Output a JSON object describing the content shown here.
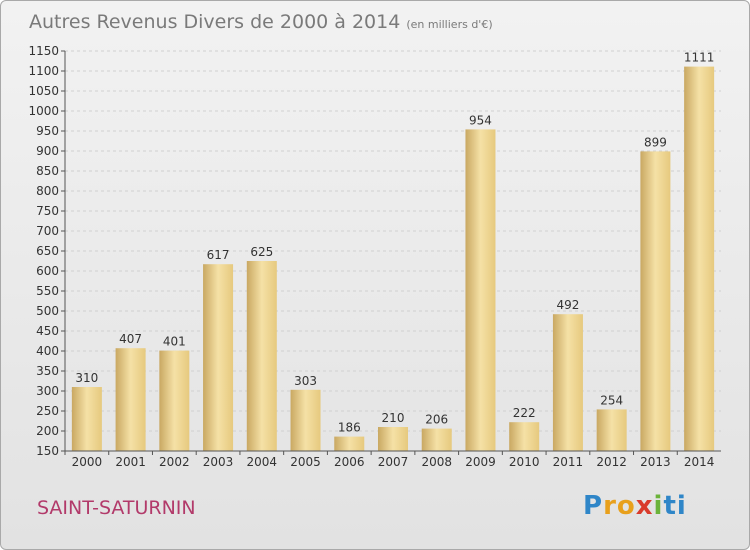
{
  "header": {
    "title": "Autres Revenus Divers de 2000 à 2014",
    "subtitle": "(en milliers d'€)"
  },
  "footer": {
    "town": "SAINT-SATURNIN",
    "brand": "Proxiti",
    "brand_letters": [
      "P",
      "r",
      "o",
      "x",
      "i",
      "ti"
    ]
  },
  "chart_data": {
    "type": "bar",
    "title": "Autres Revenus Divers de 2000 à 2014",
    "subtitle": "(en milliers d'€)",
    "xlabel": "",
    "ylabel": "",
    "categories": [
      "2000",
      "2001",
      "2002",
      "2003",
      "2004",
      "2005",
      "2006",
      "2007",
      "2008",
      "2009",
      "2010",
      "2011",
      "2012",
      "2013",
      "2014"
    ],
    "values": [
      310,
      407,
      401,
      617,
      625,
      303,
      186,
      210,
      206,
      954,
      222,
      492,
      254,
      899,
      1111
    ],
    "data_labels": [
      "310",
      "407",
      "401",
      "617",
      "625",
      "303",
      "186",
      "210",
      "206",
      "954",
      "222",
      "492",
      "254",
      "899",
      "1111"
    ],
    "ylim": [
      150,
      1150
    ],
    "yticks": [
      150,
      200,
      250,
      300,
      350,
      400,
      450,
      500,
      550,
      600,
      650,
      700,
      750,
      800,
      850,
      900,
      950,
      1000,
      1050,
      1100,
      1150
    ],
    "ytick_labels": [
      "150",
      "200",
      "250",
      "300",
      "350",
      "400",
      "450",
      "500",
      "550",
      "600",
      "650",
      "700",
      "750",
      "800",
      "850",
      "900",
      "950",
      "1000",
      "1050",
      "1100",
      "1150"
    ],
    "grid": true,
    "legend": "none",
    "bar_color": "#e6c97e",
    "bar_color_light": "#f5e1a6",
    "bar_color_dark": "#c9a862"
  }
}
